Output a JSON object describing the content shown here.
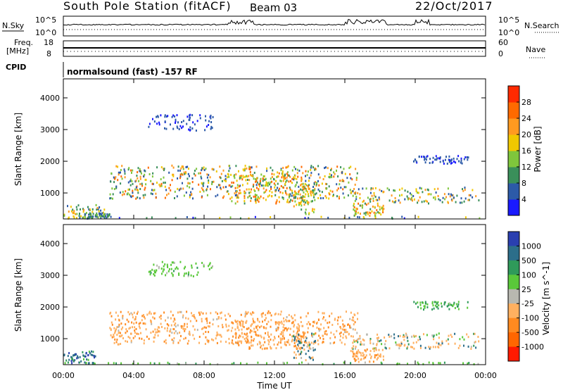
{
  "header": {
    "station": "South Pole Station (fitACF)",
    "beam": "Beam 03",
    "date": "22/Oct/2017"
  },
  "sky_panel": {
    "left_label": "N.Sky",
    "right_label": "N.Search",
    "left_ticks": [
      "10^5",
      "10^0"
    ],
    "right_ticks": [
      "10^5",
      "10^0"
    ]
  },
  "freq_panel": {
    "left_label_1": "Freq.",
    "left_label_2": "[MHz]",
    "right_label": "Nave",
    "left_ticks": [
      "18",
      "8"
    ],
    "right_ticks": [
      "60",
      "0"
    ]
  },
  "cpid": {
    "label": "CPID",
    "text": "normalsound (fast) -157 RF"
  },
  "chart_data": [
    {
      "type": "heatmap",
      "quantity": "Power",
      "ylabel": "Slant Range [km]",
      "xlabel": "Time UT",
      "x_ticks": [
        "00:00",
        "04:00",
        "08:00",
        "12:00",
        "16:00",
        "20:00",
        "00:00"
      ],
      "xlim_hours": [
        0,
        24
      ],
      "ylim_km": [
        180,
        4600
      ],
      "y_ticks": [
        "1000",
        "2000",
        "3000",
        "4000"
      ],
      "colorbar_label": "Power [dB]",
      "colorbar_ticks": [
        "4",
        "8",
        "12",
        "16",
        "20",
        "24",
        "28"
      ],
      "colorbar_colors": [
        "#1a1aff",
        "#2c5aa8",
        "#3a8f5a",
        "#7fc63c",
        "#f0c800",
        "#ff9a20",
        "#ff6a00",
        "#ff2a00"
      ],
      "regions": [
        {
          "t0": 0.0,
          "t1": 2.3,
          "r0": 200,
          "r1": 650,
          "v": [
            4,
            22
          ]
        },
        {
          "t0": 1.0,
          "t1": 2.6,
          "r0": 200,
          "r1": 400,
          "v": [
            4,
            14
          ]
        },
        {
          "t0": 2.6,
          "t1": 16.7,
          "r0": 850,
          "r1": 1900,
          "v": [
            4,
            28
          ]
        },
        {
          "t0": 9.5,
          "t1": 13.7,
          "r0": 700,
          "r1": 1600,
          "v": [
            10,
            28
          ]
        },
        {
          "t0": 13.0,
          "t1": 14.3,
          "r0": 350,
          "r1": 1200,
          "v": [
            8,
            24
          ]
        },
        {
          "t0": 4.8,
          "t1": 8.5,
          "r0": 3000,
          "r1": 3500,
          "v": [
            2,
            8
          ]
        },
        {
          "t0": 16.3,
          "t1": 23.6,
          "r0": 700,
          "r1": 1200,
          "v": [
            4,
            24
          ]
        },
        {
          "t0": 16.3,
          "t1": 18.2,
          "r0": 300,
          "r1": 700,
          "v": [
            10,
            26
          ]
        },
        {
          "t0": 19.8,
          "t1": 23.0,
          "r0": 1950,
          "r1": 2200,
          "v": [
            2,
            8
          ]
        },
        {
          "t0": 0.0,
          "t1": 24.0,
          "r0": 180,
          "r1": 280,
          "v": [
            2,
            20
          ]
        }
      ]
    },
    {
      "type": "heatmap",
      "quantity": "Velocity",
      "ylabel": "Slant Range [km]",
      "xlabel": "Time UT",
      "x_ticks": [
        "00:00",
        "04:00",
        "08:00",
        "12:00",
        "16:00",
        "20:00",
        "00:00"
      ],
      "xlim_hours": [
        0,
        24
      ],
      "ylim_km": [
        180,
        4600
      ],
      "y_ticks": [
        "1000",
        "2000",
        "3000",
        "4000"
      ],
      "colorbar_label": "Velocity [m s^-1]",
      "colorbar_ticks": [
        "1000",
        "500",
        "100",
        "25",
        "-25",
        "-100",
        "-500",
        "-1000"
      ],
      "colorbar_colors": [
        "#2a3fb0",
        "#2c6e8a",
        "#2f9a5a",
        "#5ac83a",
        "#b8b8b0",
        "#ffb060",
        "#ff8a20",
        "#ff6600",
        "#ff1a00"
      ],
      "regions": [
        {
          "t0": 0.0,
          "t1": 1.8,
          "r0": 250,
          "r1": 650,
          "v": [
            -20,
            600
          ]
        },
        {
          "t0": 2.6,
          "t1": 16.7,
          "r0": 850,
          "r1": 1900,
          "v": [
            -700,
            -60
          ]
        },
        {
          "t0": 9.5,
          "t1": 13.7,
          "r0": 700,
          "r1": 1600,
          "v": [
            -800,
            -100
          ]
        },
        {
          "t0": 13.0,
          "t1": 14.3,
          "r0": 350,
          "r1": 1200,
          "v": [
            -500,
            500
          ]
        },
        {
          "t0": 4.8,
          "t1": 8.5,
          "r0": 3000,
          "r1": 3500,
          "v": [
            -30,
            30
          ]
        },
        {
          "t0": 16.3,
          "t1": 23.6,
          "r0": 700,
          "r1": 1200,
          "v": [
            -500,
            200
          ]
        },
        {
          "t0": 16.3,
          "t1": 18.2,
          "r0": 300,
          "r1": 700,
          "v": [
            -600,
            -150
          ]
        },
        {
          "t0": 19.8,
          "t1": 23.0,
          "r0": 1950,
          "r1": 2200,
          "v": [
            -30,
            80
          ]
        },
        {
          "t0": 0.0,
          "t1": 24.0,
          "r0": 180,
          "r1": 280,
          "v": [
            -40,
            40
          ]
        }
      ]
    }
  ]
}
